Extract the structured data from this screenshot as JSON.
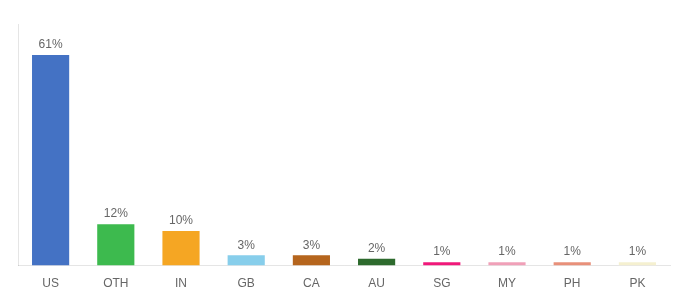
{
  "chart_data": {
    "type": "bar",
    "categories": [
      "US",
      "OTH",
      "IN",
      "GB",
      "CA",
      "AU",
      "SG",
      "MY",
      "PH",
      "PK"
    ],
    "values": [
      61,
      12,
      10,
      3,
      3,
      2,
      1,
      1,
      1,
      1
    ],
    "value_labels": [
      "61%",
      "12%",
      "10%",
      "3%",
      "3%",
      "2%",
      "1%",
      "1%",
      "1%",
      "1%"
    ],
    "colors": [
      "#4472c4",
      "#3dba4e",
      "#f5a623",
      "#87ceeb",
      "#b5651d",
      "#2d6a2d",
      "#f0187a",
      "#f0a0b8",
      "#e8907a",
      "#f5f0d0"
    ],
    "ylim": [
      0,
      70
    ],
    "grid": false,
    "data_labels": true,
    "tick_labels": "x"
  }
}
